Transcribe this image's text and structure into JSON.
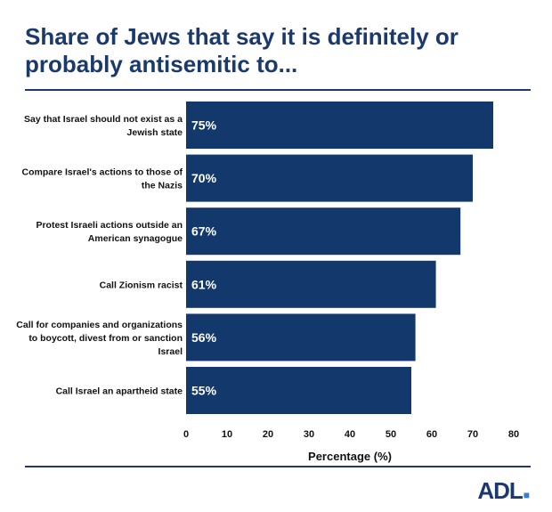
{
  "title": "Share of Jews that say it is definitely or probably antisemitic to...",
  "logo_text": "ADL",
  "colors": {
    "bar": "#13386b",
    "title": "#1b3a6b",
    "rule": "#1b3a6b",
    "text": "#111111",
    "bar_label": "#ffffff"
  },
  "chart_data": {
    "type": "bar",
    "orientation": "horizontal",
    "categories": [
      [
        "Say that Israel should not exist as a",
        "Jewish state"
      ],
      [
        "Compare Israel's actions to those of",
        "the Nazis"
      ],
      [
        "Protest Israeli actions outside an",
        "American synagogue"
      ],
      [
        "Call Zionism racist"
      ],
      [
        "Call for companies and organizations",
        "to boycott, divest from or sanction",
        "Israel"
      ],
      [
        "Call Israel an apartheid state"
      ]
    ],
    "values": [
      75,
      70,
      67,
      61,
      56,
      55
    ],
    "value_labels": [
      "75%",
      "70%",
      "67%",
      "61%",
      "56%",
      "55%"
    ],
    "xlabel": "Percentage (%)",
    "xlim": [
      0,
      80
    ],
    "xticks": [
      0,
      10,
      20,
      30,
      40,
      50,
      60,
      70,
      80
    ],
    "grid": false,
    "legend": "none"
  }
}
